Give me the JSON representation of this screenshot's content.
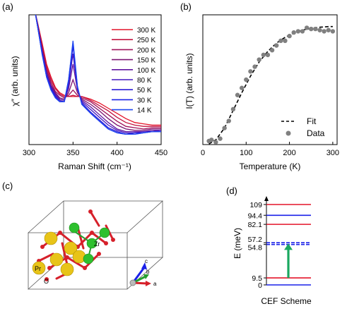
{
  "panels": {
    "a": "(a)",
    "b": "(b)",
    "c": "(c)",
    "d": "(d)"
  },
  "chart_data": [
    {
      "panel": "a",
      "type": "line",
      "xlabel": "Raman Shift (cm⁻¹)",
      "ylabel": "χ″ (arb. units)",
      "xlim": [
        300,
        450
      ],
      "xticks": [
        300,
        350,
        400,
        450
      ],
      "ylim": [
        0,
        1
      ],
      "legend_position": "top-right",
      "series": [
        {
          "name": "300 K",
          "color": "#e4152a",
          "points": [
            [
              307,
              1.02
            ],
            [
              310,
              0.93
            ],
            [
              315,
              0.78
            ],
            [
              320,
              0.62
            ],
            [
              325,
              0.52
            ],
            [
              330,
              0.44
            ],
            [
              335,
              0.4
            ],
            [
              340,
              0.38
            ],
            [
              345,
              0.37
            ],
            [
              350,
              0.37
            ],
            [
              355,
              0.37
            ],
            [
              360,
              0.37
            ],
            [
              370,
              0.35
            ],
            [
              380,
              0.32
            ],
            [
              390,
              0.28
            ],
            [
              400,
              0.24
            ],
            [
              410,
              0.2
            ],
            [
              420,
              0.17
            ],
            [
              430,
              0.16
            ],
            [
              440,
              0.15
            ],
            [
              450,
              0.15
            ]
          ]
        },
        {
          "name": "250 K",
          "color": "#c41340",
          "points": [
            [
              307,
              1.02
            ],
            [
              310,
              0.93
            ],
            [
              315,
              0.76
            ],
            [
              320,
              0.6
            ],
            [
              325,
              0.5
            ],
            [
              330,
              0.43
            ],
            [
              335,
              0.39
            ],
            [
              340,
              0.37
            ],
            [
              345,
              0.37
            ],
            [
              350,
              0.38
            ],
            [
              355,
              0.37
            ],
            [
              360,
              0.37
            ],
            [
              370,
              0.34
            ],
            [
              380,
              0.3
            ],
            [
              390,
              0.26
            ],
            [
              400,
              0.21
            ],
            [
              410,
              0.17
            ],
            [
              420,
              0.15
            ],
            [
              430,
              0.14
            ],
            [
              440,
              0.14
            ],
            [
              450,
              0.14
            ]
          ]
        },
        {
          "name": "200 K",
          "color": "#a0125a",
          "points": [
            [
              307,
              1.02
            ],
            [
              310,
              0.92
            ],
            [
              315,
              0.74
            ],
            [
              320,
              0.58
            ],
            [
              325,
              0.48
            ],
            [
              330,
              0.41
            ],
            [
              335,
              0.38
            ],
            [
              340,
              0.36
            ],
            [
              345,
              0.38
            ],
            [
              350,
              0.42
            ],
            [
              355,
              0.38
            ],
            [
              360,
              0.36
            ],
            [
              370,
              0.33
            ],
            [
              380,
              0.28
            ],
            [
              390,
              0.23
            ],
            [
              400,
              0.18
            ],
            [
              410,
              0.14
            ],
            [
              420,
              0.13
            ],
            [
              430,
              0.12
            ],
            [
              440,
              0.13
            ],
            [
              450,
              0.13
            ]
          ]
        },
        {
          "name": "150 K",
          "color": "#7c1373",
          "points": [
            [
              307,
              1.02
            ],
            [
              310,
              0.92
            ],
            [
              315,
              0.73
            ],
            [
              320,
              0.56
            ],
            [
              325,
              0.46
            ],
            [
              330,
              0.4
            ],
            [
              335,
              0.36
            ],
            [
              340,
              0.35
            ],
            [
              345,
              0.4
            ],
            [
              350,
              0.5
            ],
            [
              355,
              0.4
            ],
            [
              360,
              0.35
            ],
            [
              370,
              0.31
            ],
            [
              380,
              0.26
            ],
            [
              390,
              0.2
            ],
            [
              400,
              0.15
            ],
            [
              410,
              0.12
            ],
            [
              420,
              0.11
            ],
            [
              430,
              0.11
            ],
            [
              440,
              0.12
            ],
            [
              450,
              0.12
            ]
          ]
        },
        {
          "name": "100 K",
          "color": "#6014a0",
          "points": [
            [
              307,
              1.02
            ],
            [
              310,
              0.91
            ],
            [
              315,
              0.72
            ],
            [
              320,
              0.55
            ],
            [
              325,
              0.45
            ],
            [
              330,
              0.39
            ],
            [
              335,
              0.35
            ],
            [
              340,
              0.34
            ],
            [
              345,
              0.43
            ],
            [
              350,
              0.62
            ],
            [
              355,
              0.42
            ],
            [
              360,
              0.34
            ],
            [
              370,
              0.29
            ],
            [
              380,
              0.23
            ],
            [
              390,
              0.17
            ],
            [
              400,
              0.12
            ],
            [
              410,
              0.1
            ],
            [
              420,
              0.1
            ],
            [
              430,
              0.1
            ],
            [
              440,
              0.11
            ],
            [
              450,
              0.11
            ]
          ]
        },
        {
          "name": "80 K",
          "color": "#4416c0",
          "points": [
            [
              307,
              1.02
            ],
            [
              310,
              0.91
            ],
            [
              315,
              0.71
            ],
            [
              320,
              0.54
            ],
            [
              325,
              0.44
            ],
            [
              330,
              0.38
            ],
            [
              335,
              0.34
            ],
            [
              340,
              0.33
            ],
            [
              345,
              0.46
            ],
            [
              350,
              0.7
            ],
            [
              355,
              0.43
            ],
            [
              360,
              0.33
            ],
            [
              370,
              0.27
            ],
            [
              380,
              0.21
            ],
            [
              390,
              0.15
            ],
            [
              400,
              0.11
            ],
            [
              410,
              0.09
            ],
            [
              420,
              0.09
            ],
            [
              430,
              0.1
            ],
            [
              440,
              0.1
            ],
            [
              450,
              0.11
            ]
          ]
        },
        {
          "name": "50 K",
          "color": "#2b1ad8",
          "points": [
            [
              307,
              1.02
            ],
            [
              310,
              0.9
            ],
            [
              315,
              0.7
            ],
            [
              320,
              0.53
            ],
            [
              325,
              0.43
            ],
            [
              330,
              0.37
            ],
            [
              335,
              0.33
            ],
            [
              340,
              0.33
            ],
            [
              345,
              0.48
            ],
            [
              350,
              0.76
            ],
            [
              355,
              0.44
            ],
            [
              360,
              0.32
            ],
            [
              370,
              0.25
            ],
            [
              380,
              0.19
            ],
            [
              390,
              0.13
            ],
            [
              400,
              0.1
            ],
            [
              410,
              0.08
            ],
            [
              420,
              0.09
            ],
            [
              430,
              0.09
            ],
            [
              440,
              0.1
            ],
            [
              450,
              0.1
            ]
          ]
        },
        {
          "name": "30 K",
          "color": "#1a20e8",
          "points": [
            [
              307,
              1.02
            ],
            [
              310,
              0.9
            ],
            [
              315,
              0.7
            ],
            [
              320,
              0.52
            ],
            [
              325,
              0.42
            ],
            [
              330,
              0.36
            ],
            [
              335,
              0.33
            ],
            [
              340,
              0.33
            ],
            [
              345,
              0.5
            ],
            [
              350,
              0.78
            ],
            [
              355,
              0.44
            ],
            [
              360,
              0.31
            ],
            [
              370,
              0.24
            ],
            [
              380,
              0.18
            ],
            [
              390,
              0.12
            ],
            [
              400,
              0.09
            ],
            [
              410,
              0.08
            ],
            [
              420,
              0.08
            ],
            [
              430,
              0.09
            ],
            [
              440,
              0.1
            ],
            [
              450,
              0.1
            ]
          ]
        },
        {
          "name": "14 K",
          "color": "#1e46f0",
          "points": [
            [
              307,
              1.02
            ],
            [
              310,
              0.9
            ],
            [
              315,
              0.69
            ],
            [
              320,
              0.52
            ],
            [
              325,
              0.42
            ],
            [
              330,
              0.36
            ],
            [
              335,
              0.33
            ],
            [
              340,
              0.33
            ],
            [
              345,
              0.5
            ],
            [
              350,
              0.8
            ],
            [
              355,
              0.45
            ],
            [
              360,
              0.31
            ],
            [
              370,
              0.24
            ],
            [
              380,
              0.18
            ],
            [
              390,
              0.12
            ],
            [
              400,
              0.09
            ],
            [
              410,
              0.08
            ],
            [
              420,
              0.08
            ],
            [
              430,
              0.09
            ],
            [
              440,
              0.1
            ],
            [
              450,
              0.1
            ]
          ]
        }
      ]
    },
    {
      "panel": "b",
      "type": "scatter",
      "xlabel": "Temperature (K)",
      "ylabel": "I(T) (arb. units)",
      "xlim": [
        0,
        310
      ],
      "xticks": [
        0,
        100,
        200,
        300
      ],
      "ylim": [
        0,
        1.1
      ],
      "legend_position": "bottom-right",
      "legend": [
        "Fit",
        "Data"
      ],
      "series": [
        {
          "name": "Data",
          "color": "#808080",
          "points": [
            [
              14,
              0.03
            ],
            [
              20,
              0.04
            ],
            [
              30,
              0.02
            ],
            [
              40,
              0.05
            ],
            [
              50,
              0.14
            ],
            [
              60,
              0.2
            ],
            [
              70,
              0.3
            ],
            [
              80,
              0.42
            ],
            [
              90,
              0.48
            ],
            [
              100,
              0.55
            ],
            [
              110,
              0.62
            ],
            [
              120,
              0.66
            ],
            [
              130,
              0.72
            ],
            [
              140,
              0.76
            ],
            [
              150,
              0.76
            ],
            [
              160,
              0.8
            ],
            [
              170,
              0.84
            ],
            [
              180,
              0.88
            ],
            [
              190,
              0.88
            ],
            [
              200,
              0.92
            ],
            [
              210,
              0.95
            ],
            [
              220,
              0.96
            ],
            [
              230,
              0.96
            ],
            [
              240,
              0.99
            ],
            [
              250,
              0.98
            ],
            [
              260,
              0.98
            ],
            [
              270,
              0.97
            ],
            [
              280,
              0.96
            ],
            [
              290,
              0.97
            ],
            [
              300,
              0.96
            ]
          ]
        },
        {
          "name": "Fit",
          "color": "#000000",
          "style": "dashed",
          "points": [
            [
              14,
              0.005
            ],
            [
              30,
              0.04
            ],
            [
              50,
              0.14
            ],
            [
              70,
              0.29
            ],
            [
              90,
              0.44
            ],
            [
              110,
              0.58
            ],
            [
              130,
              0.7
            ],
            [
              150,
              0.79
            ],
            [
              170,
              0.86
            ],
            [
              190,
              0.91
            ],
            [
              210,
              0.945
            ],
            [
              230,
              0.97
            ],
            [
              250,
              0.985
            ],
            [
              270,
              0.995
            ],
            [
              290,
              1.0
            ],
            [
              300,
              1.0
            ]
          ]
        }
      ]
    },
    {
      "panel": "d",
      "type": "other",
      "title": "CEF Scheme",
      "ylabel": "E (meV)",
      "levels": [
        {
          "label": "109",
          "value": 109,
          "color": "#e4152a",
          "style": "solid"
        },
        {
          "label": "94.4",
          "value": 94.4,
          "color": "#1a20e8",
          "style": "solid"
        },
        {
          "label": "82.1",
          "value": 82.1,
          "color": "#e4152a",
          "style": "solid"
        },
        {
          "label": "57.2",
          "value": 57.2,
          "color": "#1a20e8",
          "style": "dashed"
        },
        {
          "label": "54.8",
          "value": 54.8,
          "color": "#1a20e8",
          "style": "dashed"
        },
        {
          "label": "9.5",
          "value": 9.5,
          "color": "#e4152a",
          "style": "solid"
        },
        {
          "label": "0",
          "value": 0,
          "color": "#1a20e8",
          "style": "solid"
        }
      ],
      "transition": {
        "from": 9.5,
        "to": 56,
        "color": "#1aa860"
      }
    }
  ],
  "structure": {
    "atoms": {
      "pr": "Pr",
      "zr": "Zr",
      "o": "O"
    },
    "axes": {
      "a": "a",
      "b": "b",
      "c": "c"
    }
  }
}
